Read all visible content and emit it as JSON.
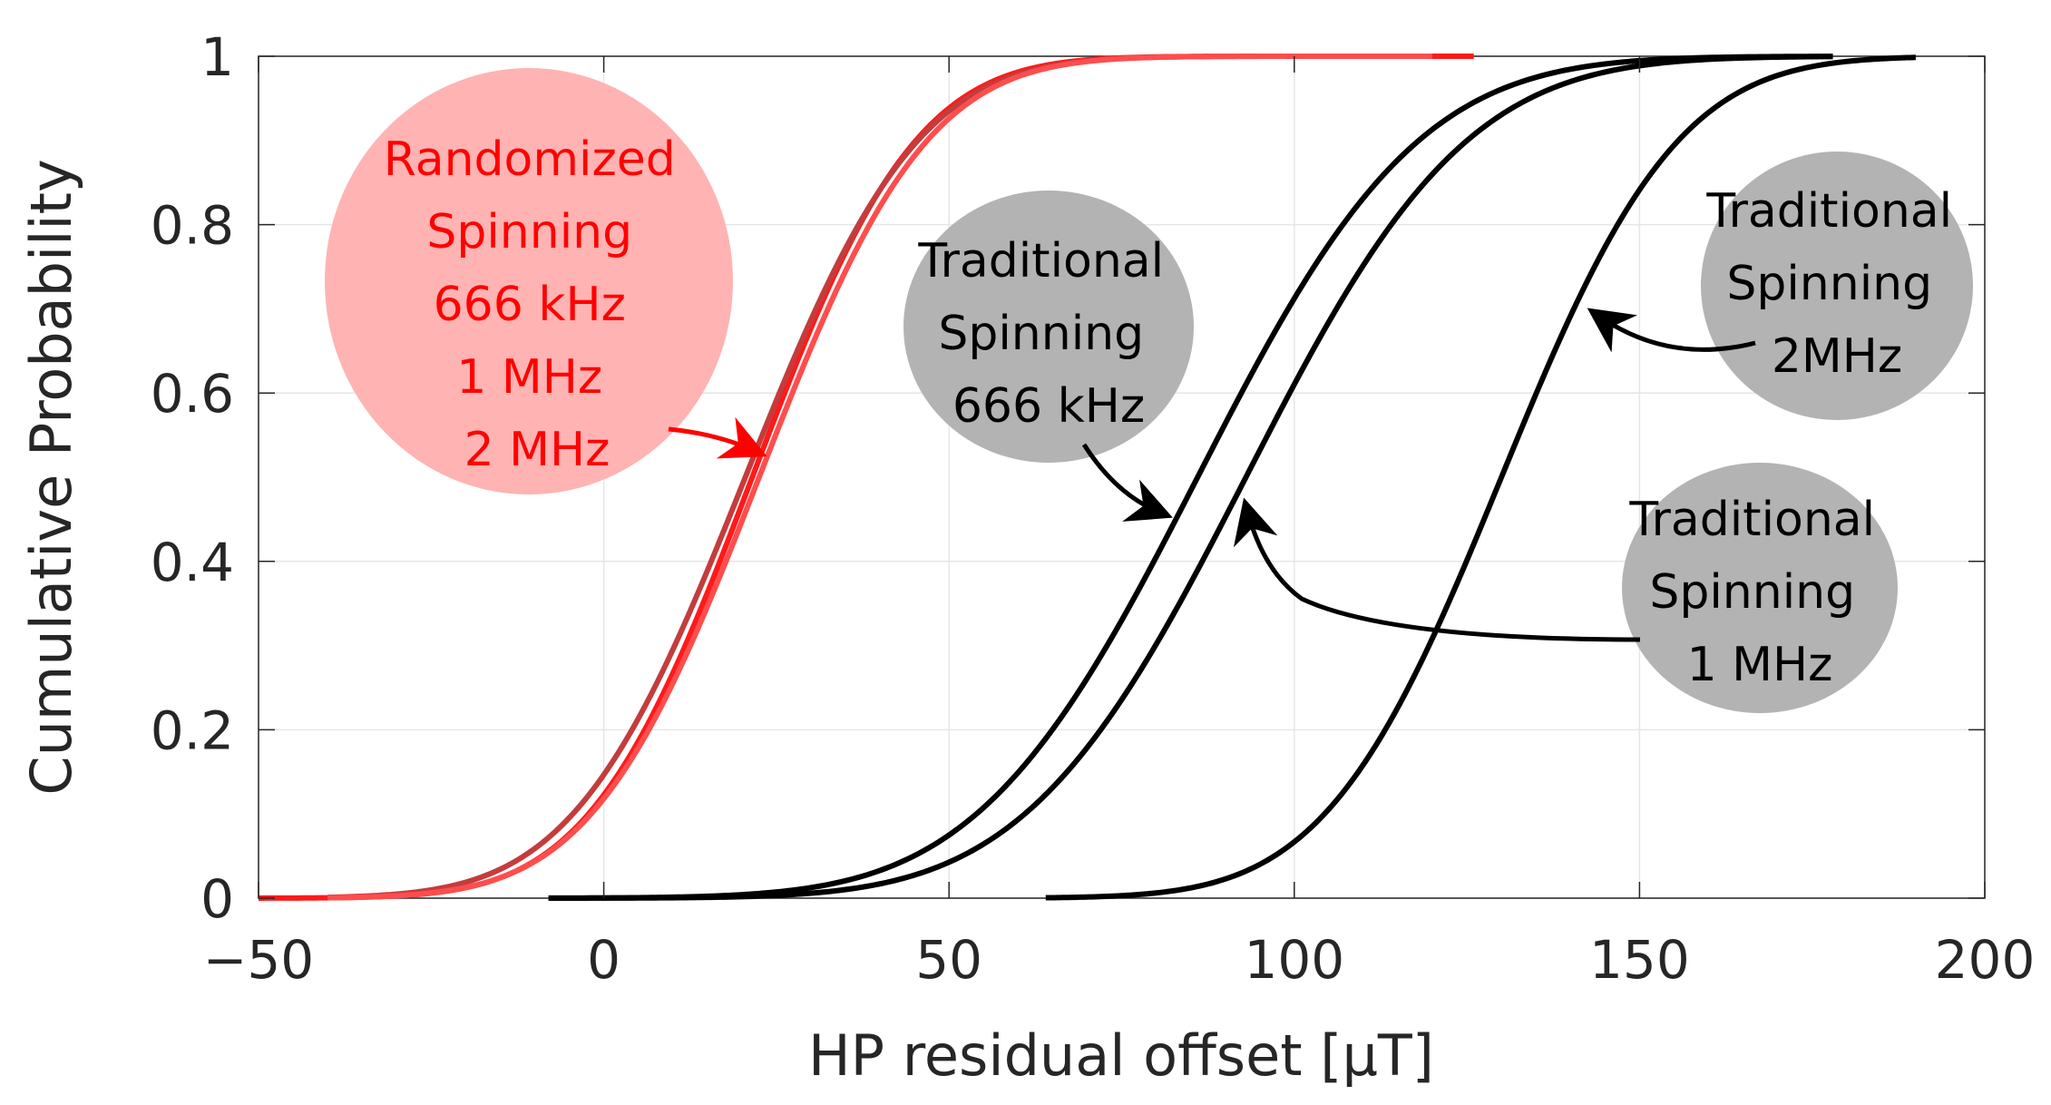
{
  "chart_data": {
    "type": "line",
    "title": "",
    "xlabel": "HP residual offset [μT]",
    "ylabel": "Cumulative Probability",
    "xlim": [
      -50,
      200
    ],
    "ylim": [
      0,
      1
    ],
    "xticks": [
      -50,
      0,
      50,
      100,
      150,
      200
    ],
    "xtick_labels": [
      "−50",
      "0",
      "50",
      "100",
      "150",
      "200"
    ],
    "yticks": [
      0,
      0.2,
      0.4,
      0.6,
      0.8,
      1
    ],
    "ytick_labels": [
      "0",
      "0.2",
      "0.4",
      "0.6",
      "0.8",
      "1"
    ],
    "grid": true,
    "series": [
      {
        "name": "Randomized Spinning 666 kHz",
        "color": "#ff1a1a",
        "mean": 21.5,
        "sd": 18.5,
        "x_start": -50,
        "x_end": 126
      },
      {
        "name": "Randomized Spinning 1 MHz",
        "color": "#c43c3c",
        "mean": 20.5,
        "sd": 19.5,
        "x_start": -40,
        "x_end": 88
      },
      {
        "name": "Randomized Spinning 2 MHz",
        "color": "#ff4d4d",
        "mean": 22.5,
        "sd": 19.0,
        "x_start": -40,
        "x_end": 120
      },
      {
        "name": "Traditional Spinning 666 kHz",
        "color": "#000000",
        "mean": 86,
        "sd": 25,
        "x_start": -8,
        "x_end": 178
      },
      {
        "name": "Traditional Spinning 1 MHz",
        "color": "#000000",
        "mean": 93,
        "sd": 25,
        "x_start": -8,
        "x_end": 178
      },
      {
        "name": "Traditional Spinning 2 MHz",
        "color": "#000000",
        "mean": 130,
        "sd": 20,
        "x_start": 64,
        "x_end": 190
      }
    ],
    "annotations": [
      {
        "id": "randomized",
        "lines": [
          "Randomized",
          "Spinning",
          "666 kHz",
          "1 MHz",
          "2 MHz"
        ],
        "text_color": "#ff0000",
        "bubble_color": "#ffb3b3"
      },
      {
        "id": "trad666",
        "lines": [
          "Traditional",
          "Spinning",
          "666 kHz"
        ],
        "text_color": "#000000",
        "bubble_color": "#b3b3b3"
      },
      {
        "id": "trad2",
        "lines": [
          "Traditional",
          "Spinning",
          "2MHz"
        ],
        "text_color": "#000000",
        "bubble_color": "#b3b3b3"
      },
      {
        "id": "trad1",
        "lines": [
          "Traditional",
          "Spinning",
          "1 MHz"
        ],
        "text_color": "#000000",
        "bubble_color": "#b3b3b3"
      }
    ]
  }
}
